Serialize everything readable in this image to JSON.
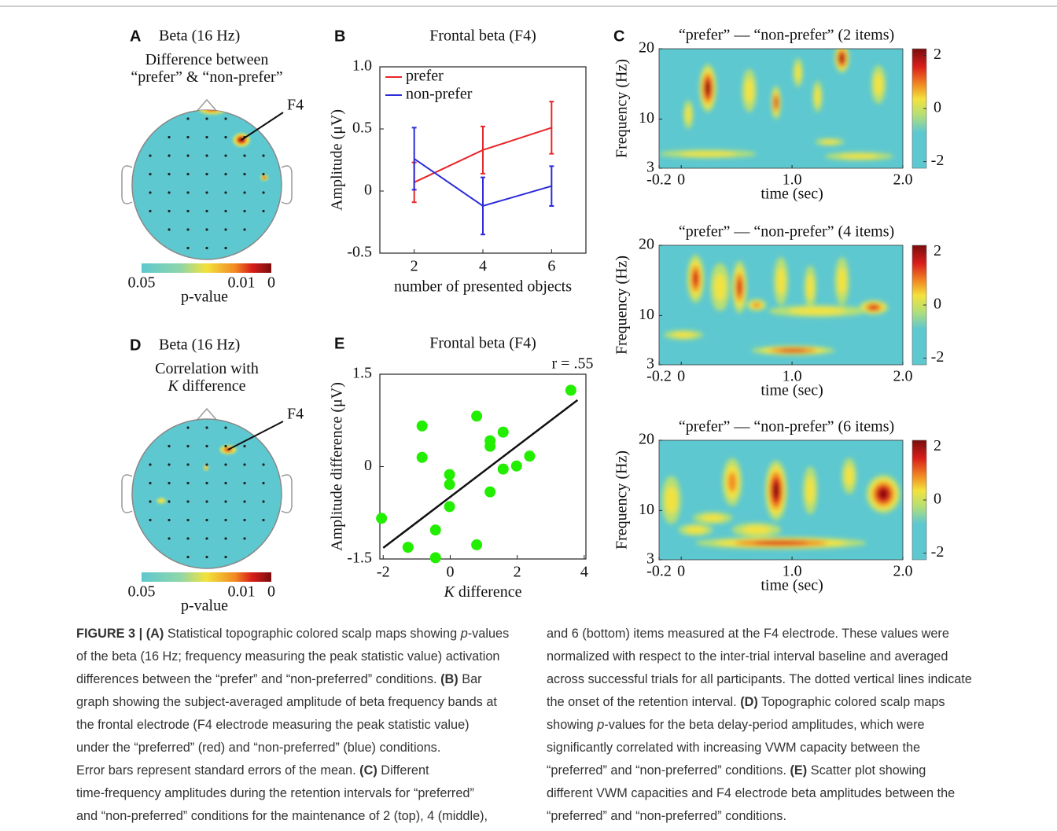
{
  "panels": {
    "A": {
      "label": "A",
      "title": "Beta (16 Hz)",
      "subtitle": [
        [
          "Difference between"
        ],
        [
          "“prefer” & “non-prefer”"
        ]
      ],
      "electrode": "F4",
      "colorbar": {
        "ticks": [
          0.05,
          0.01,
          0
        ],
        "label": "p-value"
      }
    },
    "D": {
      "label": "D",
      "title": "Beta (16 Hz)",
      "subtitle": [
        [
          "Correlation with"
        ],
        [
          {
            "text": "K",
            "style": "italic"
          },
          " difference"
        ]
      ],
      "electrode": "F4",
      "colorbar": {
        "ticks": [
          0.05,
          0.01,
          0
        ],
        "label": "p-value"
      }
    },
    "C": {
      "label": "C",
      "ylabel": "Frequency (Hz)",
      "xlabel": "time (sec)",
      "ylim": [
        3,
        20
      ],
      "yticks": [
        3,
        10,
        20
      ],
      "xlim": [
        -0.2,
        2.0
      ],
      "xticks": [
        -0.2,
        0,
        {
          "value": 1,
          "label": "1.0"
        },
        {
          "value": 2,
          "label": "2.0"
        }
      ],
      "clim": [
        -2.25,
        2.25
      ],
      "cticks": [
        2,
        0,
        -2
      ],
      "plots": [
        {
          "title": "“prefer” — “non-prefer” (2 items)"
        },
        {
          "title": "“prefer” — “non-prefer” (4 items)"
        },
        {
          "title": "“prefer” — “non-prefer” (6 items)"
        }
      ]
    }
  },
  "chart_data": [
    {
      "type": "line",
      "panel": "B",
      "title": "Frontal beta (F4)",
      "xlabel": "number of presented objects",
      "ylabel": "Amplitude (μV)",
      "x": [
        2,
        4,
        6
      ],
      "xlim": [
        1,
        7
      ],
      "xticks": [
        2,
        4,
        6
      ],
      "ylim": [
        -0.5,
        1.0
      ],
      "yticks": [
        -0.5,
        0,
        0.5,
        {
          "value": 1,
          "label": "1.0"
        }
      ],
      "legend": "upper left",
      "series": [
        {
          "name": "prefer",
          "color": "#e8262a",
          "values": [
            0.07,
            0.33,
            0.51
          ],
          "errors": [
            0.16,
            0.19,
            0.21
          ]
        },
        {
          "name": "non-prefer",
          "color": "#2b2bd9",
          "values": [
            0.26,
            -0.12,
            0.04
          ],
          "errors": [
            0.25,
            0.23,
            0.16
          ]
        }
      ]
    },
    {
      "type": "scatter",
      "panel": "E",
      "title": "Frontal beta (F4)",
      "annotation": "r = .55",
      "xlabel": [
        {
          "text": "K",
          "style": "italic"
        },
        " difference"
      ],
      "ylabel": "Amplitude difference (μV)",
      "xlim": [
        -2.1,
        4.05
      ],
      "xticks": [
        -2,
        0,
        2,
        4
      ],
      "ylim": [
        -1.5,
        1.5
      ],
      "yticks": [
        -1.5,
        0,
        1.5
      ],
      "color": "#22ee00",
      "x": [
        -2.05,
        -1.26,
        -0.84,
        -0.84,
        -0.44,
        -0.44,
        -0.02,
        -0.02,
        -0.02,
        0.79,
        0.79,
        1.19,
        1.19,
        1.19,
        1.58,
        1.58,
        1.98,
        2.37,
        3.6
      ],
      "values": [
        -0.84,
        -1.31,
        0.66,
        0.15,
        -1.03,
        -1.48,
        -0.13,
        -0.29,
        -0.65,
        0.82,
        -1.27,
        0.42,
        0.33,
        -0.41,
        0.56,
        -0.04,
        0.01,
        0.17,
        1.24
      ],
      "fit": {
        "x": [
          -2,
          3.8
        ],
        "values": [
          -1.32,
          1.08
        ],
        "color": "#111111"
      }
    }
  ],
  "caption": {
    "left": [
      [
        {
          "text": "FIGURE 3 | (A)",
          "style": "bold"
        },
        " Statistical topographic colored scalp maps showing ",
        {
          "text": "p",
          "style": "italic"
        },
        "-values"
      ],
      [
        "of the beta (16 Hz; frequency measuring the peak statistic value) activation"
      ],
      [
        "differences between the “prefer” and “non-preferred” conditions. ",
        {
          "text": "(B)",
          "style": "bold"
        },
        " Bar"
      ],
      [
        "graph showing the subject-averaged amplitude of beta frequency bands at"
      ],
      [
        "the frontal electrode (F4 electrode measuring the peak statistic value)"
      ],
      [
        "under the “preferred” (red) and “non-preferred” (blue) conditions."
      ],
      [
        "Error bars represent standard errors of the mean. ",
        {
          "text": "(C)",
          "style": "bold"
        },
        " Different"
      ],
      [
        "time-frequency amplitudes during the retention intervals for “preferred”"
      ],
      [
        "and “non-preferred” conditions for the maintenance of 2 (top), 4 (middle),"
      ]
    ],
    "right": [
      [
        "and 6 (bottom) items measured at the F4 electrode. These values were"
      ],
      [
        "normalized with respect to the inter-trial interval baseline and averaged"
      ],
      [
        "across successful trials for all participants. The dotted vertical lines indicate"
      ],
      [
        "the onset of the retention interval. ",
        {
          "text": "(D)",
          "style": "bold"
        },
        " Topographic colored scalp maps"
      ],
      [
        "showing ",
        {
          "text": "p",
          "style": "italic"
        },
        "-values for the beta delay-period amplitudes, which were"
      ],
      [
        "significantly correlated with increasing VWM capacity between the"
      ],
      [
        "“preferred” and “non-preferred” conditions. ",
        {
          "text": "(E)",
          "style": "bold"
        },
        " Scatter plot showing"
      ],
      [
        "different VWM capacities and F4 electrode beta amplitudes between the"
      ],
      [
        "“preferred” and “non-preferred” conditions."
      ]
    ]
  }
}
